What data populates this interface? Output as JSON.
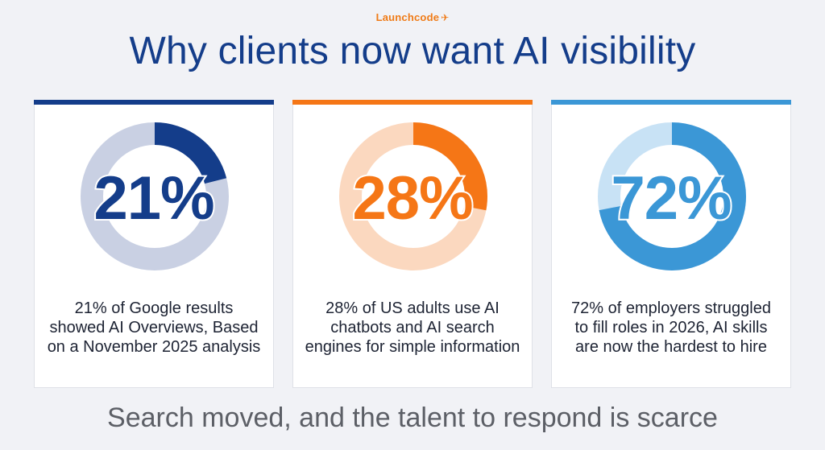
{
  "brand": {
    "name": "Launchcode",
    "icon": "plane-icon"
  },
  "title": "Why clients now want AI visibility",
  "cards": [
    {
      "value": "21%",
      "fraction": 0.21,
      "accent": "#143d8a",
      "track": "#c9d0e3",
      "description": "21% of Google results showed AI Overviews, Based on a November 2025 analysis"
    },
    {
      "value": "28%",
      "fraction": 0.28,
      "accent": "#f57616",
      "track": "#fbd8bf",
      "description": "28% of US adults use AI chatbots and AI search engines for simple information"
    },
    {
      "value": "72%",
      "fraction": 0.72,
      "accent": "#3b97d6",
      "track": "#c8e2f5",
      "description": "72% of employers struggled to fill roles in 2026, AI skills are now the hardest to hire"
    }
  ],
  "footer": "Search moved, and the talent to respond is scarce"
}
